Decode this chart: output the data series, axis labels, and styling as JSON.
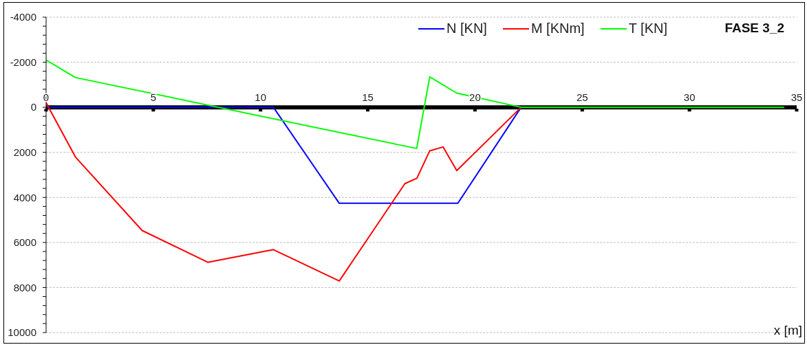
{
  "chart_data": {
    "type": "line",
    "title": "FASE 3_2",
    "xlabel": "x [m]",
    "xlim": [
      0,
      35
    ],
    "xticks": [
      0,
      5,
      10,
      15,
      20,
      25,
      30,
      35
    ],
    "ylim": [
      10000,
      -4000
    ],
    "yticks": [
      -4000,
      {
        "value": -3600,
        "label": null
      },
      {
        "value": -3200,
        "label": null
      },
      {
        "value": -2800,
        "label": null
      },
      {
        "value": -2400,
        "label": null
      },
      -2000,
      {
        "value": -1600,
        "label": null
      },
      {
        "value": -1200,
        "label": null
      },
      {
        "value": -800,
        "label": null
      },
      {
        "value": -400,
        "label": null
      },
      0,
      {
        "value": 400,
        "label": null
      },
      {
        "value": 800,
        "label": null
      },
      {
        "value": 1200,
        "label": null
      },
      {
        "value": 1600,
        "label": null
      },
      2000,
      {
        "value": 2400,
        "label": null
      },
      {
        "value": 2800,
        "label": null
      },
      {
        "value": 3200,
        "label": null
      },
      {
        "value": 3600,
        "label": null
      },
      4000,
      {
        "value": 4400,
        "label": null
      },
      {
        "value": 4800,
        "label": null
      },
      {
        "value": 5200,
        "label": null
      },
      {
        "value": 5600,
        "label": null
      },
      6000,
      {
        "value": 6400,
        "label": null
      },
      {
        "value": 6800,
        "label": null
      },
      {
        "value": 7200,
        "label": null
      },
      {
        "value": 7600,
        "label": null
      },
      8000,
      {
        "value": 8400,
        "label": null
      },
      {
        "value": 8800,
        "label": null
      },
      {
        "value": 9200,
        "label": null
      },
      {
        "value": 9600,
        "label": null
      },
      10000
    ],
    "grid": "y",
    "legend": "top right",
    "marker": "none",
    "line_style": "solid",
    "series": [
      {
        "name": "N [KN]",
        "color": "#0000ff",
        "x": [
          0,
          10.6,
          13.67,
          19.2,
          22.15
        ],
        "values": [
          0,
          0,
          4260,
          4260,
          0
        ]
      },
      {
        "name": "M [KNm]",
        "color": "#ff0000",
        "x": [
          0,
          1.37,
          4.48,
          7.54,
          10.6,
          13.67,
          16.73,
          17.29,
          17.89,
          18.51,
          19.15,
          22.15
        ],
        "values": [
          -200,
          2210,
          5470,
          6880,
          6320,
          7710,
          3390,
          3150,
          1930,
          1760,
          2810,
          0
        ]
      },
      {
        "name": "T [KN]",
        "color": "#00ff00",
        "x": [
          0,
          1.37,
          17.28,
          17.89,
          19.15,
          22.15,
          34.4
        ],
        "values": [
          -2100,
          -1320,
          1830,
          -1350,
          -630,
          0,
          0
        ]
      }
    ]
  }
}
